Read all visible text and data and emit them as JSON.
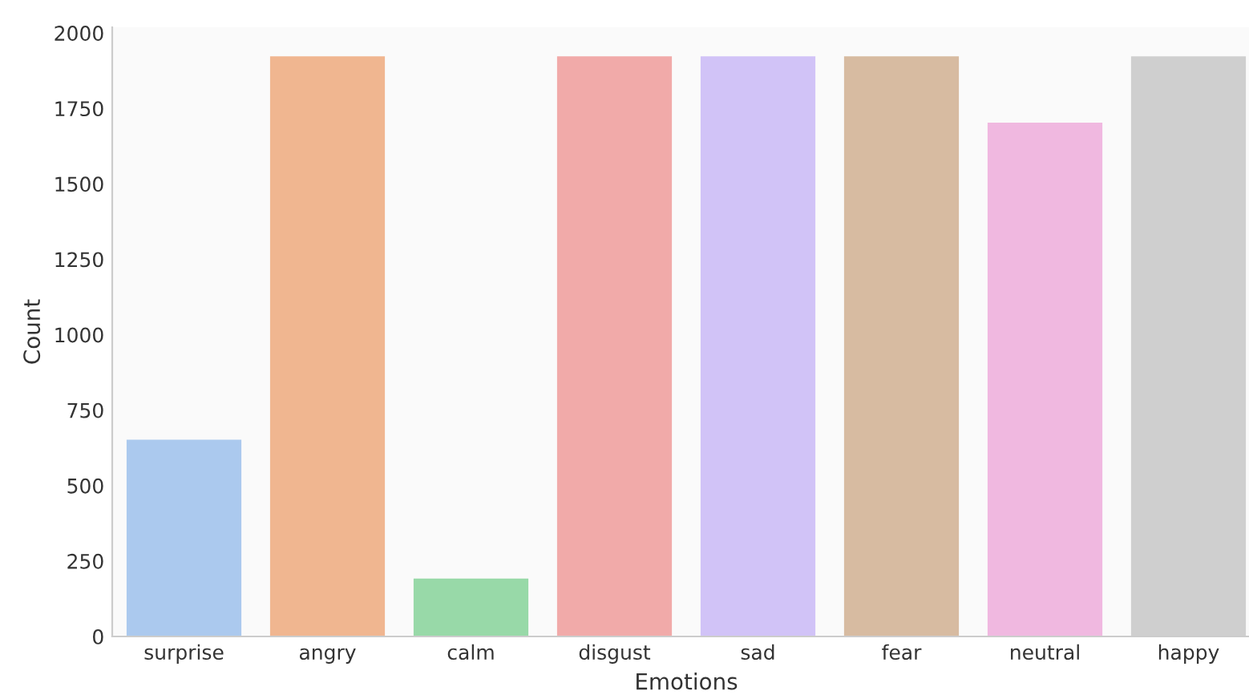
{
  "chart_data": {
    "type": "bar",
    "xlabel": "Emotions",
    "ylabel": "Count",
    "categories": [
      "surprise",
      "angry",
      "calm",
      "disgust",
      "sad",
      "fear",
      "neutral",
      "happy"
    ],
    "values": [
      652,
      1923,
      192,
      1923,
      1923,
      1923,
      1703,
      1923
    ],
    "colors": [
      "#abc9ee",
      "#f0b690",
      "#98d9a8",
      "#f1aaa9",
      "#d1c3f7",
      "#d7bba1",
      "#f0b8e0",
      "#cfcfcf"
    ],
    "ylim": [
      0,
      2019
    ],
    "yticks": [
      0,
      250,
      500,
      750,
      1000,
      1250,
      1500,
      1750,
      2000
    ],
    "grid": false
  }
}
